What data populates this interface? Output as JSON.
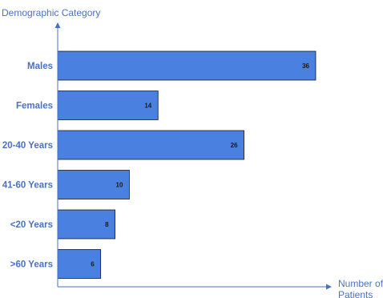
{
  "chart_data": {
    "type": "bar",
    "orientation": "horizontal",
    "title": "",
    "ylabel": "Demographic Category",
    "xlabel": "Number of Patients",
    "categories": [
      "Males",
      "Females",
      "20-40 Years",
      "41-60 Years",
      "<20 Years",
      ">60 Years"
    ],
    "values": [
      36,
      14,
      26,
      10,
      8,
      6
    ],
    "xlim": [
      0,
      38
    ],
    "grid": false,
    "legend": "none",
    "bar_color": "#4a80e0",
    "bar_edge_color": "#1a1a1a",
    "text_color": "#4a72c4",
    "axis_color": "#4a72c4"
  }
}
